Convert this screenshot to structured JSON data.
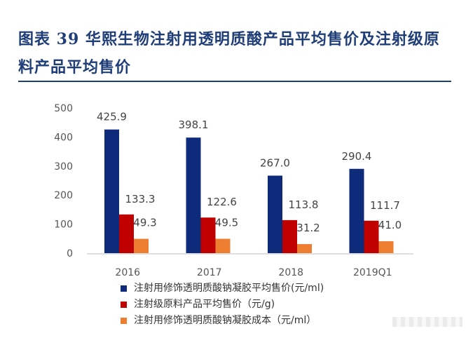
{
  "title": "图表 39   华熙生物注射用透明质酸产品平均售价及注射级原料产品平均售价",
  "chart_data": {
    "type": "bar",
    "categories": [
      "2016",
      "2017",
      "2018",
      "2019Q1"
    ],
    "series": [
      {
        "name": "注射用修饰透明质酸钠凝胶平均售价(元/ml)",
        "values": [
          425.9,
          398.1,
          267.0,
          290.4
        ],
        "labels": [
          "425.9",
          "398.1",
          "267.0",
          "290.4"
        ],
        "color": "#0e2a7a"
      },
      {
        "name": "注射级原料产品平均售价（元/g)",
        "values": [
          133.3,
          122.6,
          113.8,
          111.7
        ],
        "labels": [
          "133.3",
          "122.6",
          "113.8",
          "111.7"
        ],
        "color": "#c00000"
      },
      {
        "name": "注射用修饰透明质酸钠凝胶成本（元/ml）",
        "values": [
          49.3,
          49.5,
          31.2,
          41.0
        ],
        "labels": [
          "49.3",
          "49.5",
          "31.2",
          "41.0"
        ],
        "color": "#ed7d31"
      }
    ],
    "ylim": [
      0,
      500
    ],
    "yticks": [
      0,
      100,
      200,
      300,
      400,
      500
    ],
    "legend_position": "bottom",
    "grid": false
  }
}
